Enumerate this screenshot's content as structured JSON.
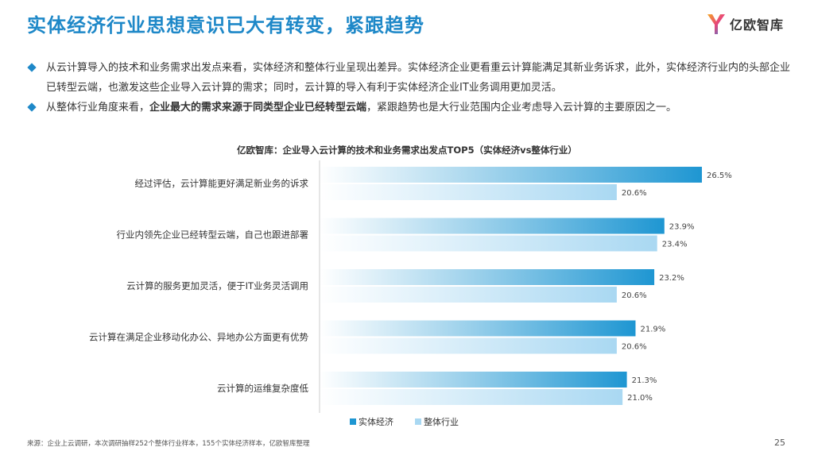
{
  "header": {
    "title": "实体经济行业思想意识已大有转变，紧跟趋势",
    "logo_text": "亿欧智库",
    "logo_icon": "yiou-logo-icon"
  },
  "bullets": [
    {
      "text": "从云计算导入的技术和业务需求出发点来看，实体经济和整体行业呈现出差异。实体经济企业更看重云计算能满足其新业务诉求，此外，实体经济行业内的头部企业已转型云端，也激发这些企业导入云计算的需求；同时，云计算的导入有利于实体经济企业IT业务调用更加灵活。"
    },
    {
      "prefix": "从整体行业角度来看，",
      "bold": "企业最大的需求来源于同类型企业已经转型云端",
      "suffix": "，紧跟趋势也是大行业范围内企业考虑导入云计算的主要原因之一。"
    }
  ],
  "chart_data": {
    "type": "bar",
    "orientation": "horizontal",
    "title": "亿欧智库：企业导入云计算的技术和业务需求出发点TOP5（实体经济vs整体行业）",
    "categories": [
      "经过评估，云计算能更好满足新业务的诉求",
      "行业内领先企业已经转型云端，自己也跟进部署",
      "云计算的服务更加灵活，便于IT业务灵活调用",
      "云计算在满足企业移动化办公、异地办公方面更有优势",
      "云计算的运维复杂度低"
    ],
    "series": [
      {
        "name": "实体经济",
        "values": [
          26.5,
          23.9,
          23.2,
          21.9,
          21.3
        ],
        "labels": [
          "26.5%",
          "23.9%",
          "23.2%",
          "21.9%",
          "21.3%"
        ],
        "color": "#1e96d2"
      },
      {
        "name": "整体行业",
        "values": [
          20.6,
          23.4,
          20.6,
          20.6,
          21.0
        ],
        "labels": [
          "20.6%",
          "23.4%",
          "20.6%",
          "20.6%",
          "21.0%"
        ],
        "color": "#a9d8f2"
      }
    ],
    "unit": "%",
    "legend_position": "bottom",
    "grid": false
  },
  "footer": {
    "source": "来源：企业上云调研，本次调研抽样252个整体行业样本，155个实体经济样本，亿欧智库整理",
    "page": "25"
  }
}
